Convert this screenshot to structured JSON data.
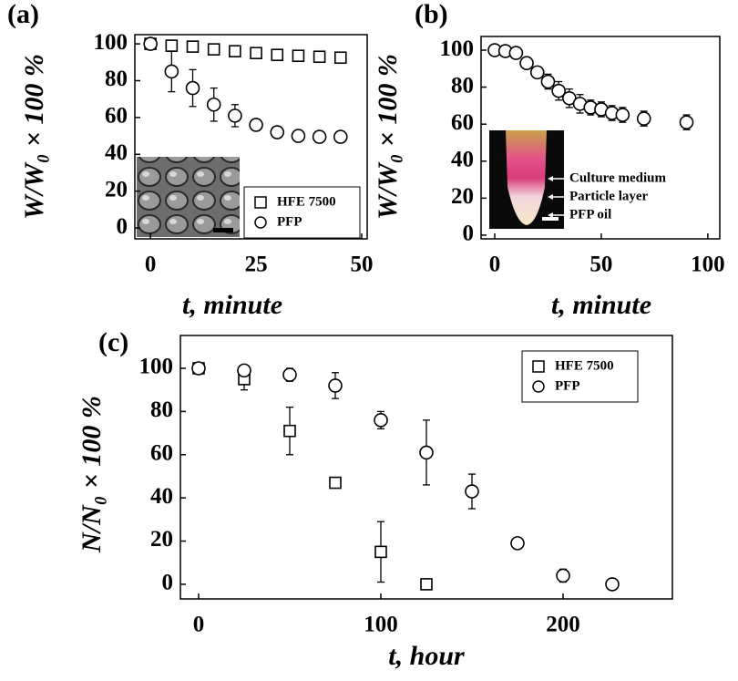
{
  "chart_data": [
    {
      "type": "scatter",
      "label": "(a)",
      "xlabel": "t, minute",
      "ylabel": "W/W₀ × 100 %",
      "x": [
        0,
        5,
        10,
        15,
        20,
        25,
        30,
        35,
        40,
        45
      ],
      "series": [
        {
          "name": "HFE 7500",
          "marker": "square",
          "color": "#000000",
          "values": [
            100,
            99,
            98.5,
            97,
            96,
            95,
            94,
            93.5,
            93,
            92.5
          ],
          "errors": [
            1,
            1.5,
            1.5,
            2,
            1.5,
            1.5,
            2,
            1.5,
            2,
            1.5
          ]
        },
        {
          "name": "PFP",
          "marker": "circle",
          "color": "#000000",
          "values": [
            100,
            85,
            76,
            67,
            61,
            56,
            52,
            50,
            49.5,
            49.5
          ],
          "errors": [
            0,
            11,
            10,
            9,
            6,
            3,
            1,
            2,
            3,
            3
          ]
        }
      ],
      "xlim": [
        -3.7,
        51.3
      ],
      "ylim": [
        -5.9,
        105
      ],
      "xticks": [
        0,
        25,
        50
      ],
      "yticks": [
        0,
        20,
        40,
        60,
        80,
        100
      ],
      "legend": "lower right"
    },
    {
      "type": "scatter",
      "label": "(b)",
      "xlabel": "t, minute",
      "ylabel": "W/W₀ × 100 %",
      "x": [
        0,
        5,
        10,
        15,
        20,
        25,
        30,
        35,
        40,
        45,
        50,
        55,
        60,
        70,
        90
      ],
      "series": [
        {
          "marker": "circle",
          "color": "#000000",
          "values": [
            100,
            99.5,
            98.5,
            93,
            88,
            83,
            78,
            74,
            71,
            69,
            68,
            66,
            65,
            63,
            61
          ],
          "errors": [
            0,
            0,
            1.5,
            2,
            3,
            4,
            5,
            5,
            5,
            4,
            4,
            4,
            4,
            4,
            4
          ]
        }
      ],
      "xlim": [
        -6.4,
        105.6
      ],
      "ylim": [
        -2,
        107.4
      ],
      "xticks": [
        0,
        50,
        100
      ],
      "yticks": [
        0,
        20,
        40,
        60,
        80,
        100
      ],
      "annotations": [
        "Culture medium",
        "Particle layer",
        "PFP oil"
      ]
    },
    {
      "type": "scatter",
      "label": "(c)",
      "xlabel": "t, hour",
      "ylabel": "N/N₀ × 100 %",
      "x": [
        0,
        25,
        50,
        75,
        100,
        125,
        150,
        175,
        200,
        227
      ],
      "series": [
        {
          "name": "HFE 7500",
          "marker": "square",
          "color": "#000000",
          "values": [
            100,
            95,
            71,
            47,
            15,
            0,
            null,
            null,
            null,
            null
          ],
          "errors": [
            0,
            5,
            11,
            2,
            14,
            0,
            null,
            null,
            null,
            null
          ]
        },
        {
          "name": "PFP",
          "marker": "circle",
          "color": "#000000",
          "values": [
            100,
            99,
            97,
            92,
            76,
            61,
            43,
            19,
            4,
            0
          ],
          "errors": [
            0,
            2,
            3,
            6,
            4,
            15,
            8,
            1,
            3,
            0
          ]
        }
      ],
      "xlim": [
        -10,
        260
      ],
      "ylim": [
        -6.8,
        115.2
      ],
      "xticks": [
        0,
        100,
        200
      ],
      "yticks": [
        0,
        20,
        40,
        60,
        80,
        100
      ],
      "legend": "upper right"
    }
  ]
}
